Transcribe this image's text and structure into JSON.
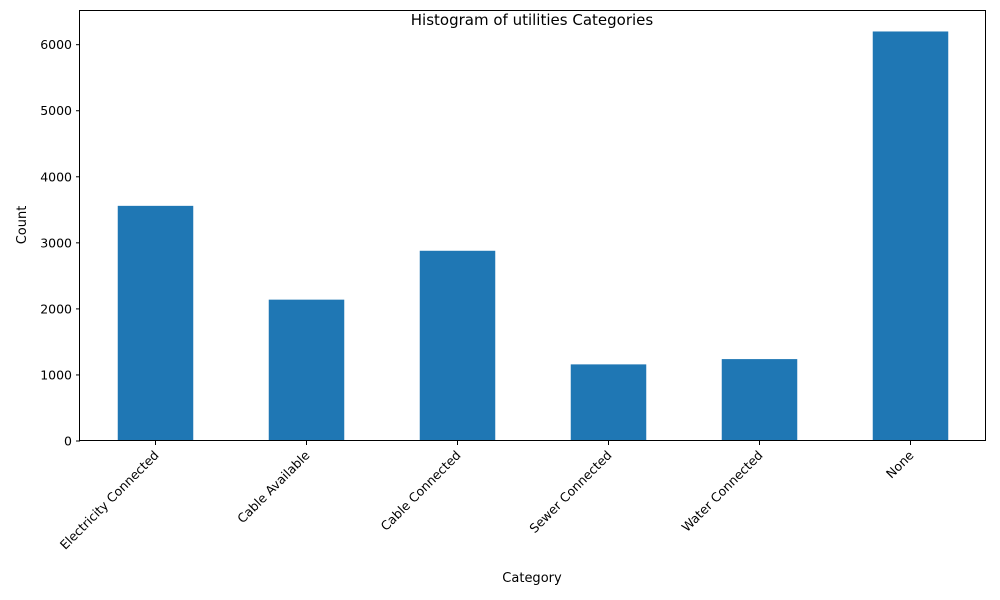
{
  "chart_data": {
    "type": "bar",
    "title": "Histogram of utilities Categories",
    "xlabel": "Category",
    "ylabel": "Count",
    "categories": [
      "Electricity Connected",
      "Cable Available",
      "Cable Connected",
      "Sewer Connected",
      "Water Connected",
      "None"
    ],
    "values": [
      3560,
      2140,
      2880,
      1160,
      1240,
      6200
    ],
    "ylim": [
      0,
      6510
    ],
    "yticks": [
      0,
      1000,
      2000,
      3000,
      4000,
      5000,
      6000
    ],
    "grid": false,
    "legend": "none",
    "bar_color": "#1f77b4"
  }
}
